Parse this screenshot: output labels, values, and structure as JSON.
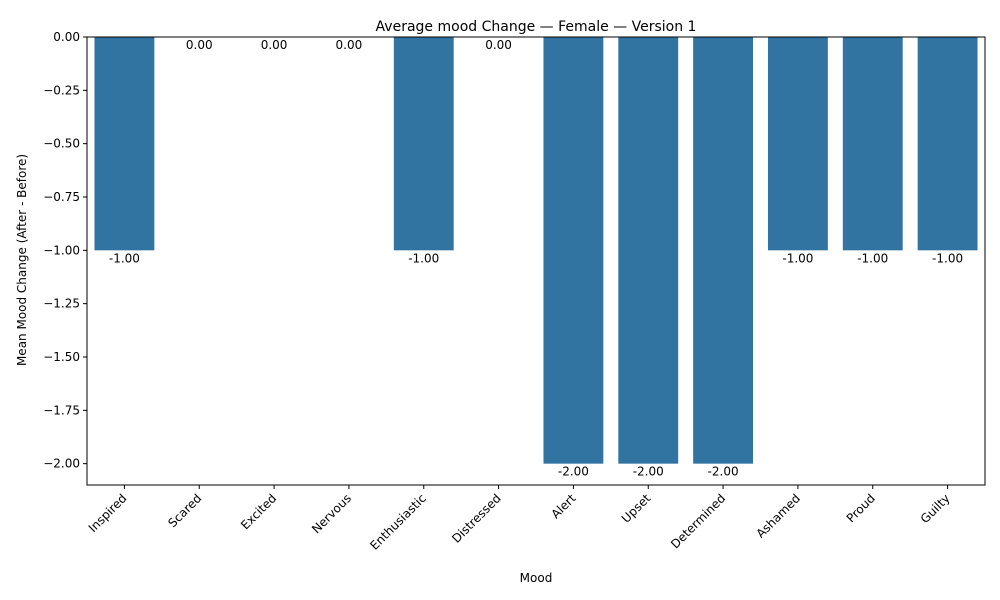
{
  "chart_data": {
    "type": "bar",
    "title": "Average mood Change — Female — Version 1",
    "xlabel": "Mood",
    "ylabel": "Mean Mood Change (After - Before)",
    "categories": [
      "Inspired",
      "Scared",
      "Excited",
      "Nervous",
      "Enthusiastic",
      "Distressed",
      "Alert",
      "Upset",
      "Determined",
      "Ashamed",
      "Proud",
      "Guilty"
    ],
    "values": [
      -1.0,
      0.0,
      0.0,
      0.0,
      -1.0,
      0.0,
      -2.0,
      -2.0,
      -2.0,
      -1.0,
      -1.0,
      -1.0
    ],
    "data_labels": [
      "-1.00",
      "0.00",
      "0.00",
      "0.00",
      "-1.00",
      "0.00",
      "-2.00",
      "-2.00",
      "-2.00",
      "-1.00",
      "-1.00",
      "-1.00"
    ],
    "yticks": [
      0.0,
      -0.25,
      -0.5,
      -0.75,
      -1.0,
      -1.25,
      -1.5,
      -1.75,
      -2.0
    ],
    "ytick_labels": [
      "0.00",
      "−0.25",
      "−0.50",
      "−0.75",
      "−1.00",
      "−1.25",
      "−1.50",
      "−1.75",
      "−2.00"
    ],
    "ylim": [
      -2.1,
      0.0
    ],
    "bar_color": "#3274a1",
    "grid": false,
    "legend": "none"
  }
}
